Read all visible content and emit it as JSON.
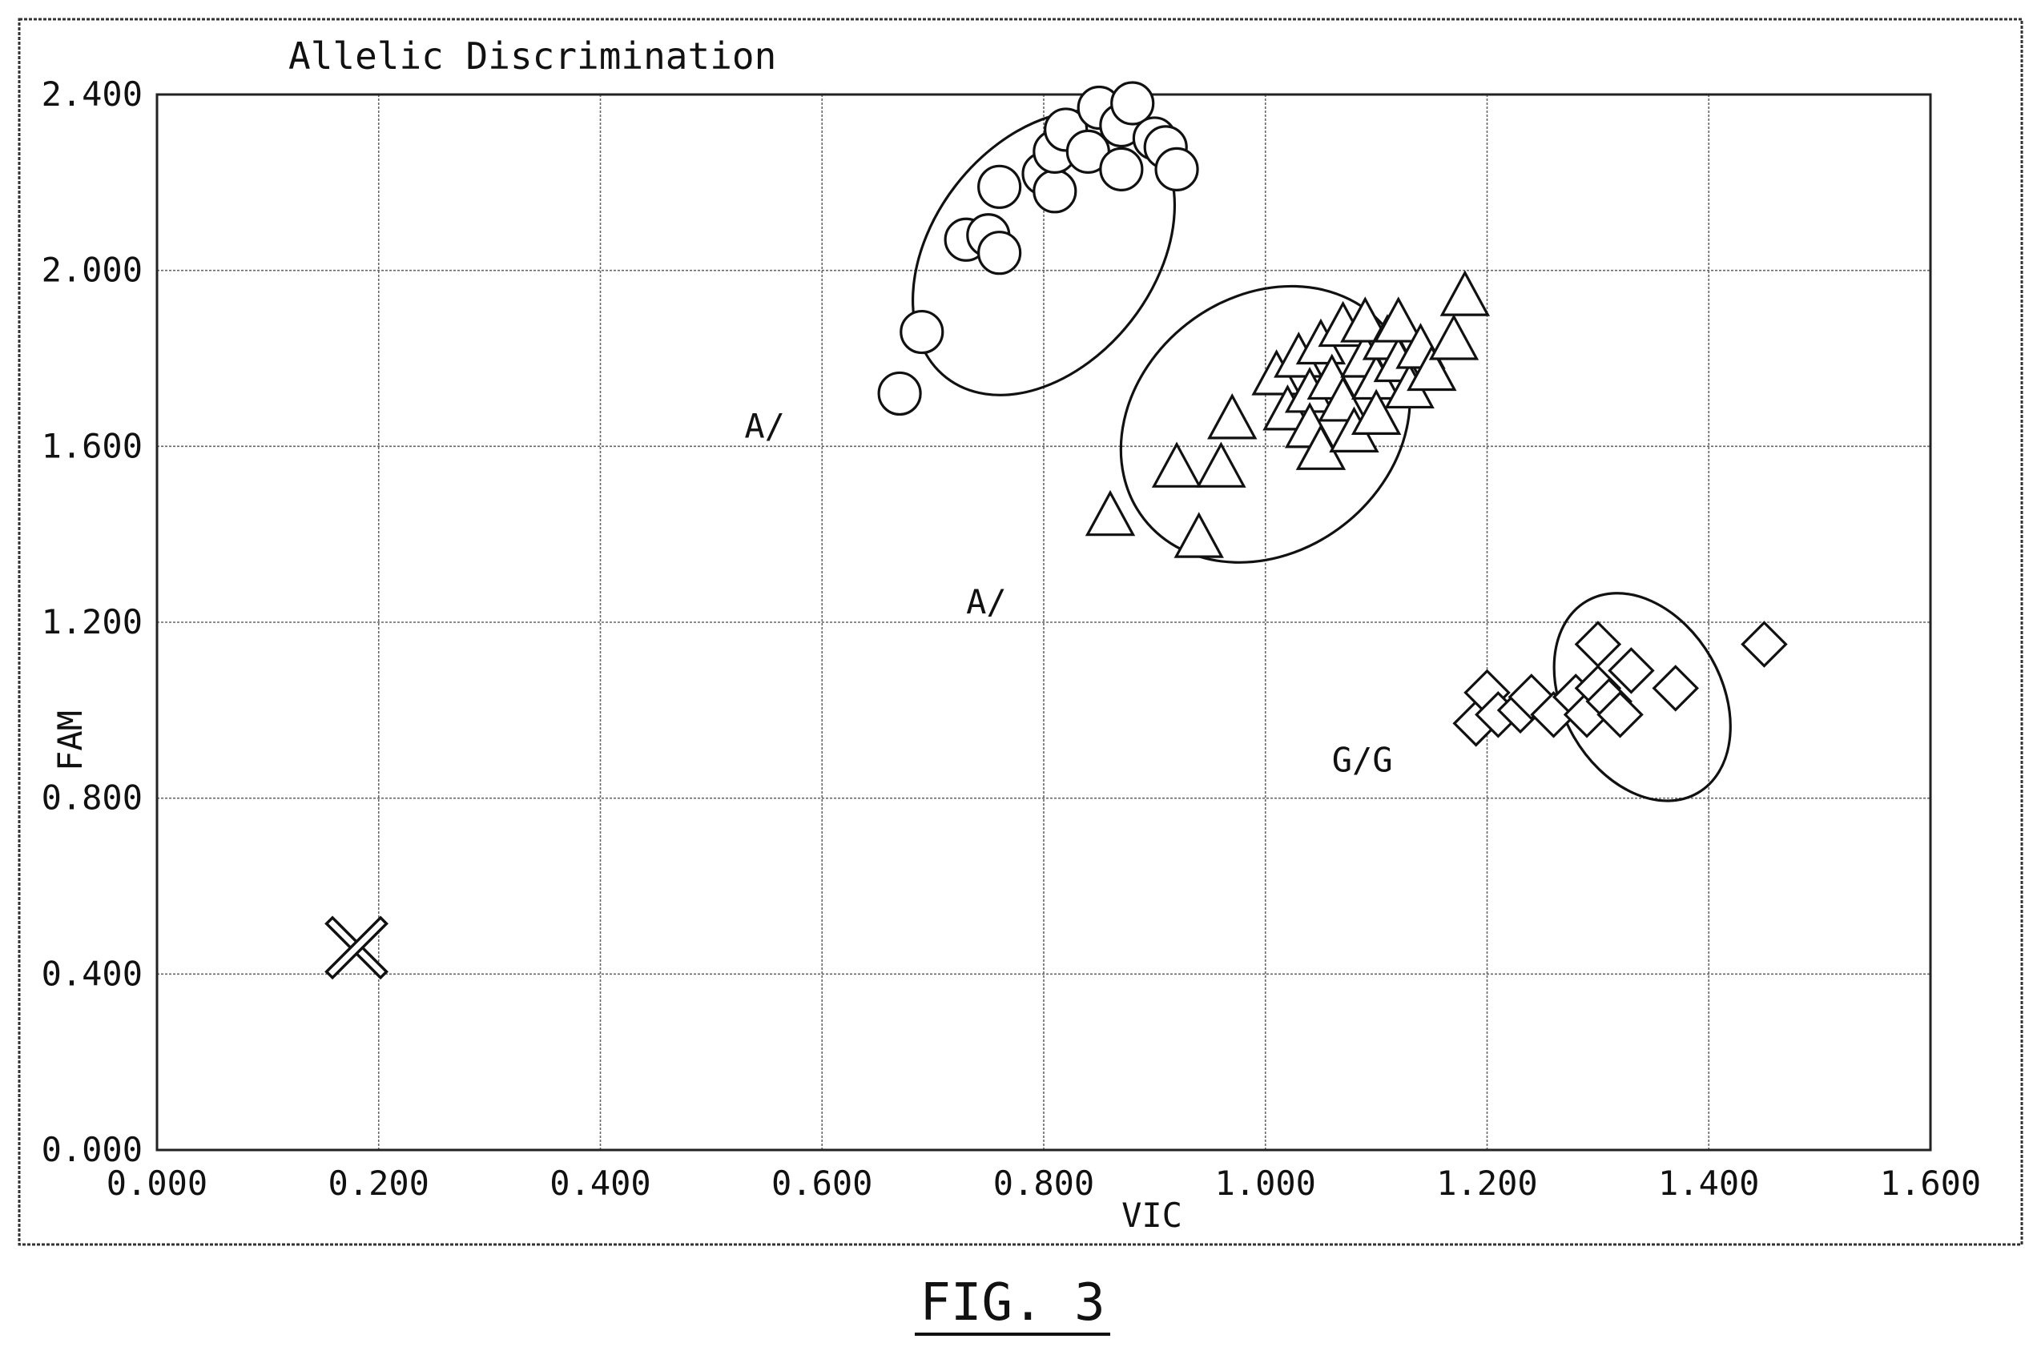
{
  "chart_data": {
    "type": "scatter",
    "title": "Allelic Discrimination",
    "xlabel": "VIC",
    "ylabel": "FAM",
    "xlim": [
      0,
      1.6
    ],
    "ylim": [
      0,
      2.4
    ],
    "x_ticks": [
      "0.000",
      "0.200",
      "0.400",
      "0.600",
      "0.800",
      "1.000",
      "1.200",
      "1.400",
      "1.600"
    ],
    "y_ticks": [
      "0.000",
      "0.400",
      "0.800",
      "1.200",
      "1.600",
      "2.000",
      "2.400"
    ],
    "grid": true,
    "figure_label": "FIG. 3",
    "series": [
      {
        "marker": "circle",
        "points": [
          [
            0.67,
            1.72
          ],
          [
            0.69,
            1.86
          ],
          [
            0.73,
            2.07
          ],
          [
            0.75,
            2.08
          ],
          [
            0.76,
            2.04
          ],
          [
            0.76,
            2.19
          ],
          [
            0.8,
            2.22
          ],
          [
            0.81,
            2.18
          ],
          [
            0.81,
            2.27
          ],
          [
            0.82,
            2.32
          ],
          [
            0.84,
            2.27
          ],
          [
            0.85,
            2.37
          ],
          [
            0.87,
            2.23
          ],
          [
            0.87,
            2.33
          ],
          [
            0.88,
            2.38
          ],
          [
            0.9,
            2.3
          ],
          [
            0.91,
            2.28
          ],
          [
            0.92,
            2.23
          ]
        ]
      },
      {
        "marker": "triangle",
        "points": [
          [
            0.86,
            1.44
          ],
          [
            0.92,
            1.55
          ],
          [
            0.94,
            1.39
          ],
          [
            0.96,
            1.55
          ],
          [
            0.97,
            1.66
          ],
          [
            1.01,
            1.76
          ],
          [
            1.02,
            1.68
          ],
          [
            1.03,
            1.8
          ],
          [
            1.04,
            1.72
          ],
          [
            1.04,
            1.64
          ],
          [
            1.05,
            1.59
          ],
          [
            1.05,
            1.83
          ],
          [
            1.06,
            1.75
          ],
          [
            1.07,
            1.87
          ],
          [
            1.07,
            1.7
          ],
          [
            1.08,
            1.63
          ],
          [
            1.09,
            1.8
          ],
          [
            1.09,
            1.88
          ],
          [
            1.1,
            1.75
          ],
          [
            1.1,
            1.67
          ],
          [
            1.11,
            1.84
          ],
          [
            1.12,
            1.79
          ],
          [
            1.12,
            1.88
          ],
          [
            1.13,
            1.73
          ],
          [
            1.14,
            1.82
          ],
          [
            1.15,
            1.77
          ],
          [
            1.17,
            1.84
          ],
          [
            1.18,
            1.94
          ]
        ]
      },
      {
        "marker": "diamond",
        "points": [
          [
            1.19,
            0.97
          ],
          [
            1.2,
            1.04
          ],
          [
            1.21,
            0.99
          ],
          [
            1.23,
            1.0
          ],
          [
            1.24,
            1.03
          ],
          [
            1.26,
            0.99
          ],
          [
            1.28,
            1.03
          ],
          [
            1.29,
            0.99
          ],
          [
            1.3,
            1.05
          ],
          [
            1.3,
            1.15
          ],
          [
            1.31,
            1.02
          ],
          [
            1.32,
            0.99
          ],
          [
            1.33,
            1.09
          ],
          [
            1.37,
            1.05
          ],
          [
            1.45,
            1.15
          ]
        ]
      },
      {
        "marker": "x",
        "points": [
          [
            0.18,
            0.46
          ]
        ]
      }
    ],
    "annotations": [
      {
        "text": "A/",
        "x": 0.53,
        "y": 1.62
      },
      {
        "text": "A/",
        "x": 0.73,
        "y": 1.22
      },
      {
        "text": "G/G",
        "x": 1.06,
        "y": 0.86
      }
    ],
    "ellipses": [
      {
        "cx": 0.8,
        "cy": 2.04,
        "rx": 0.1,
        "ry": 0.36,
        "angle_deg": 38
      },
      {
        "cx": 1.0,
        "cy": 1.65,
        "rx": 0.115,
        "ry": 0.35,
        "angle_deg": 52
      },
      {
        "cx": 1.34,
        "cy": 1.03,
        "rx": 0.1,
        "ry": 0.18,
        "angle_deg": 60
      }
    ]
  }
}
